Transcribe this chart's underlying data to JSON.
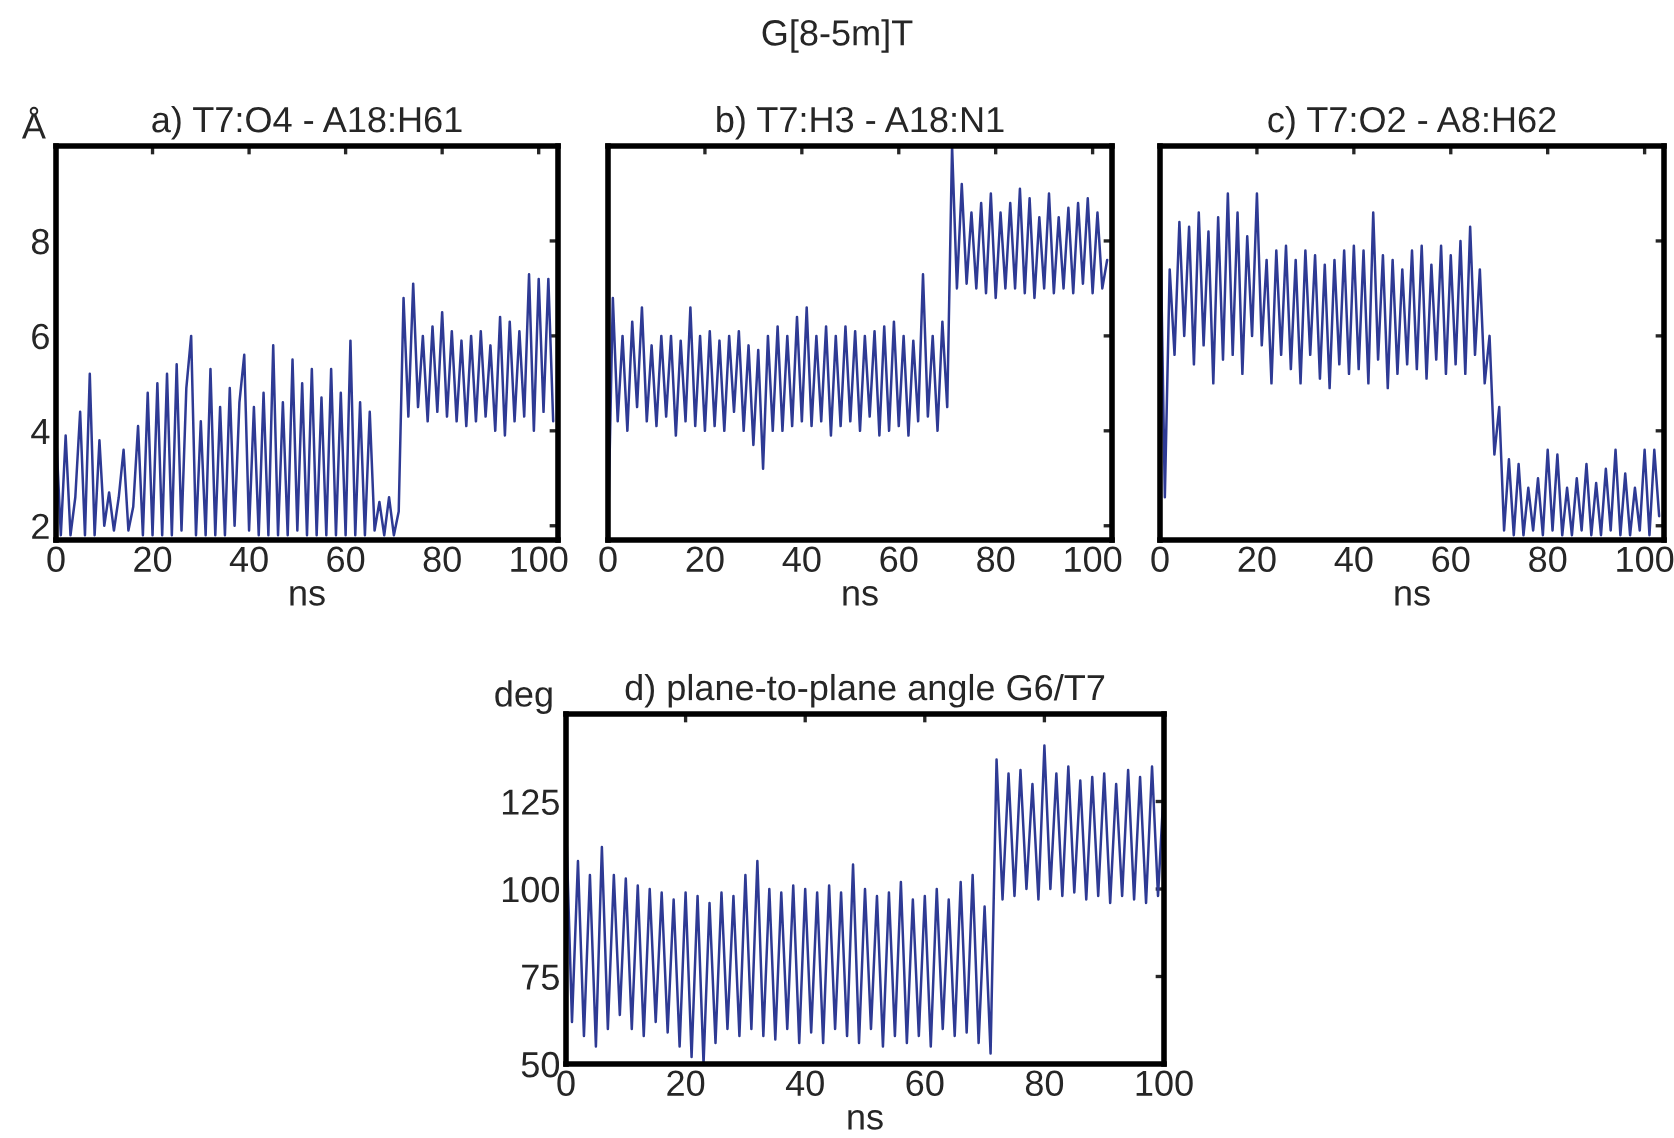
{
  "chart_data": [
    {
      "type": "line",
      "title": "a) T7:O4 - A18:H61",
      "xlabel": "ns",
      "ylabel": "Å",
      "annotations": [
        "G[8-5m]T"
      ],
      "xlim": [
        0,
        104
      ],
      "ylim": [
        1.7,
        10
      ],
      "xticks": [
        0,
        20,
        40,
        60,
        80,
        100
      ],
      "yticks": [
        2,
        4,
        6,
        8
      ],
      "grid": false,
      "legend": false,
      "series": [
        {
          "color": "#2e3a94",
          "x": [
            0,
            1,
            2,
            3,
            4,
            5,
            6,
            7,
            8,
            9,
            10,
            11,
            12,
            13,
            14,
            15,
            16,
            17,
            18,
            19,
            20,
            21,
            22,
            23,
            24,
            25,
            26,
            27,
            28,
            29,
            30,
            31,
            32,
            33,
            34,
            35,
            36,
            37,
            38,
            39,
            40,
            41,
            42,
            43,
            44,
            45,
            46,
            47,
            48,
            49,
            50,
            51,
            52,
            53,
            54,
            55,
            56,
            57,
            58,
            59,
            60,
            61,
            62,
            63,
            64,
            65,
            66,
            67,
            68,
            69,
            70,
            71,
            72,
            73,
            74,
            75,
            76,
            77,
            78,
            79,
            80,
            81,
            82,
            83,
            84,
            85,
            86,
            87,
            88,
            89,
            90,
            91,
            92,
            93,
            94,
            95,
            96,
            97,
            98,
            99,
            100,
            101,
            102,
            103
          ],
          "values": [
            4.0,
            1.8,
            3.9,
            1.8,
            2.6,
            4.4,
            1.8,
            5.2,
            1.8,
            3.8,
            2.0,
            2.7,
            1.9,
            2.6,
            3.6,
            1.9,
            2.4,
            4.1,
            1.8,
            4.8,
            1.8,
            5.0,
            1.8,
            5.2,
            1.8,
            5.4,
            1.9,
            4.9,
            6.0,
            1.8,
            4.2,
            1.8,
            5.3,
            1.8,
            4.5,
            1.8,
            4.9,
            2.0,
            4.6,
            5.6,
            1.9,
            4.5,
            1.8,
            4.8,
            1.8,
            5.8,
            1.8,
            4.6,
            1.8,
            5.5,
            1.9,
            5.0,
            1.8,
            5.3,
            1.8,
            4.7,
            1.8,
            5.3,
            1.8,
            4.8,
            1.8,
            5.9,
            1.8,
            4.6,
            1.8,
            4.4,
            1.9,
            2.5,
            1.8,
            2.6,
            1.8,
            2.3,
            6.8,
            4.3,
            7.1,
            4.5,
            6.0,
            4.2,
            6.2,
            4.4,
            6.5,
            4.3,
            6.1,
            4.2,
            5.9,
            4.1,
            6.0,
            4.2,
            6.1,
            4.3,
            5.8,
            4.0,
            6.4,
            3.9,
            6.3,
            4.2,
            6.1,
            4.3,
            7.3,
            4.0,
            7.2,
            4.4,
            7.2,
            4.2
          ]
        }
      ]
    },
    {
      "type": "line",
      "title": "b) T7:H3 - A18:N1",
      "xlabel": "ns",
      "xlim": [
        0,
        104
      ],
      "ylim": [
        1.7,
        10
      ],
      "xticks": [
        0,
        20,
        40,
        60,
        80,
        100
      ],
      "yticks": [
        2,
        4,
        6,
        8
      ],
      "tick_labels": "x",
      "grid": false,
      "legend": false,
      "series": [
        {
          "color": "#2e3a94",
          "x": [
            0,
            1,
            2,
            3,
            4,
            5,
            6,
            7,
            8,
            9,
            10,
            11,
            12,
            13,
            14,
            15,
            16,
            17,
            18,
            19,
            20,
            21,
            22,
            23,
            24,
            25,
            26,
            27,
            28,
            29,
            30,
            31,
            32,
            33,
            34,
            35,
            36,
            37,
            38,
            39,
            40,
            41,
            42,
            43,
            44,
            45,
            46,
            47,
            48,
            49,
            50,
            51,
            52,
            53,
            54,
            55,
            56,
            57,
            58,
            59,
            60,
            61,
            62,
            63,
            64,
            65,
            66,
            67,
            68,
            69,
            70,
            71,
            72,
            73,
            74,
            75,
            76,
            77,
            78,
            79,
            80,
            81,
            82,
            83,
            84,
            85,
            86,
            87,
            88,
            89,
            90,
            91,
            92,
            93,
            94,
            95,
            96,
            97,
            98,
            99,
            100,
            101,
            102,
            103
          ],
          "values": [
            1.8,
            6.8,
            4.2,
            6.0,
            4.0,
            6.3,
            4.5,
            6.6,
            4.2,
            5.8,
            4.1,
            6.0,
            4.3,
            6.0,
            3.9,
            5.9,
            4.2,
            6.6,
            4.1,
            6.0,
            4.0,
            6.1,
            4.1,
            5.9,
            4.0,
            6.0,
            4.4,
            6.1,
            4.0,
            5.8,
            3.7,
            5.7,
            3.2,
            6.0,
            4.0,
            6.2,
            4.0,
            6.0,
            4.1,
            6.4,
            4.2,
            6.6,
            4.1,
            6.0,
            4.2,
            6.2,
            3.9,
            6.0,
            4.1,
            6.2,
            4.2,
            6.1,
            4.0,
            6.0,
            4.3,
            6.1,
            3.9,
            6.2,
            4.0,
            6.3,
            4.1,
            6.0,
            3.9,
            5.9,
            4.2,
            7.3,
            4.3,
            6.0,
            4.0,
            6.3,
            4.5,
            10.0,
            7.0,
            9.2,
            7.1,
            8.6,
            7.0,
            8.8,
            6.9,
            9.0,
            6.8,
            8.6,
            7.0,
            8.8,
            7.0,
            9.1,
            6.9,
            8.9,
            6.8,
            8.5,
            7.0,
            9.0,
            6.9,
            8.5,
            7.0,
            8.7,
            6.9,
            8.8,
            7.1,
            8.9,
            6.9,
            8.6,
            7.0,
            7.6
          ]
        }
      ]
    },
    {
      "type": "line",
      "title": "c) T7:O2 - A8:H62",
      "xlabel": "ns",
      "xlim": [
        0,
        104
      ],
      "ylim": [
        1.7,
        10
      ],
      "xticks": [
        0,
        20,
        40,
        60,
        80,
        100
      ],
      "yticks": [
        2,
        4,
        6,
        8
      ],
      "tick_labels": "x",
      "grid": false,
      "legend": false,
      "series": [
        {
          "color": "#2e3a94",
          "x": [
            0,
            1,
            2,
            3,
            4,
            5,
            6,
            7,
            8,
            9,
            10,
            11,
            12,
            13,
            14,
            15,
            16,
            17,
            18,
            19,
            20,
            21,
            22,
            23,
            24,
            25,
            26,
            27,
            28,
            29,
            30,
            31,
            32,
            33,
            34,
            35,
            36,
            37,
            38,
            39,
            40,
            41,
            42,
            43,
            44,
            45,
            46,
            47,
            48,
            49,
            50,
            51,
            52,
            53,
            54,
            55,
            56,
            57,
            58,
            59,
            60,
            61,
            62,
            63,
            64,
            65,
            66,
            67,
            68,
            69,
            70,
            71,
            72,
            73,
            74,
            75,
            76,
            77,
            78,
            79,
            80,
            81,
            82,
            83,
            84,
            85,
            86,
            87,
            88,
            89,
            90,
            91,
            92,
            93,
            94,
            95,
            96,
            97,
            98,
            99,
            100,
            101,
            102,
            103
          ],
          "values": [
            8.8,
            2.6,
            7.4,
            5.6,
            8.4,
            6.0,
            8.3,
            5.4,
            8.6,
            5.8,
            8.2,
            5.0,
            8.5,
            5.5,
            9.0,
            5.6,
            8.6,
            5.2,
            8.1,
            6.0,
            9.0,
            5.8,
            7.6,
            5.0,
            7.8,
            5.6,
            7.9,
            5.3,
            7.6,
            5.0,
            7.8,
            5.6,
            7.7,
            5.1,
            7.5,
            4.9,
            7.6,
            5.4,
            7.8,
            5.2,
            7.9,
            5.3,
            7.8,
            5.0,
            8.6,
            5.5,
            7.7,
            4.9,
            7.6,
            5.2,
            7.4,
            5.4,
            7.8,
            5.3,
            7.9,
            5.1,
            7.5,
            5.5,
            7.9,
            5.2,
            7.7,
            5.4,
            8.0,
            5.2,
            8.3,
            5.6,
            7.4,
            5.0,
            6.0,
            3.5,
            4.5,
            1.9,
            3.4,
            1.8,
            3.3,
            1.8,
            2.8,
            1.9,
            3.0,
            1.8,
            3.6,
            1.9,
            3.5,
            1.8,
            2.8,
            1.8,
            3.0,
            1.9,
            3.3,
            1.8,
            2.9,
            1.8,
            3.2,
            1.9,
            3.6,
            1.8,
            3.1,
            1.8,
            2.8,
            1.9,
            3.6,
            1.8,
            3.6,
            2.2
          ]
        }
      ]
    },
    {
      "type": "line",
      "title": "d) plane-to-plane angle G6/T7",
      "xlabel": "ns",
      "ylabel": "deg",
      "xlim": [
        0,
        100
      ],
      "ylim": [
        50,
        150
      ],
      "xticks": [
        0,
        20,
        40,
        60,
        80,
        100
      ],
      "yticks": [
        50,
        75,
        100,
        125
      ],
      "grid": false,
      "legend": false,
      "series": [
        {
          "color": "#2e3a94",
          "x": [
            0,
            1,
            2,
            3,
            4,
            5,
            6,
            7,
            8,
            9,
            10,
            11,
            12,
            13,
            14,
            15,
            16,
            17,
            18,
            19,
            20,
            21,
            22,
            23,
            24,
            25,
            26,
            27,
            28,
            29,
            30,
            31,
            32,
            33,
            34,
            35,
            36,
            37,
            38,
            39,
            40,
            41,
            42,
            43,
            44,
            45,
            46,
            47,
            48,
            49,
            50,
            51,
            52,
            53,
            54,
            55,
            56,
            57,
            58,
            59,
            60,
            61,
            62,
            63,
            64,
            65,
            66,
            67,
            68,
            69,
            70,
            71,
            72,
            73,
            74,
            75,
            76,
            77,
            78,
            79,
            80,
            81,
            82,
            83,
            84,
            85,
            86,
            87,
            88,
            89,
            90,
            91,
            92,
            93,
            94,
            95,
            96,
            97,
            98,
            99,
            100
          ],
          "values": [
            120,
            62,
            108,
            58,
            104,
            55,
            112,
            60,
            104,
            64,
            103,
            60,
            101,
            58,
            100,
            62,
            99,
            59,
            97,
            55,
            99,
            52,
            98,
            50,
            96,
            56,
            99,
            60,
            98,
            58,
            104,
            60,
            108,
            58,
            100,
            57,
            99,
            60,
            101,
            56,
            100,
            59,
            99,
            56,
            101,
            60,
            99,
            58,
            107,
            56,
            100,
            60,
            98,
            55,
            99,
            58,
            102,
            56,
            97,
            58,
            98,
            55,
            100,
            60,
            97,
            58,
            102,
            59,
            104,
            56,
            95,
            53,
            137,
            97,
            133,
            98,
            134,
            100,
            130,
            97,
            141,
            100,
            133,
            98,
            135,
            99,
            131,
            97,
            132,
            98,
            133,
            96,
            130,
            98,
            134,
            97,
            132,
            96,
            135,
            98,
            130
          ]
        }
      ]
    }
  ]
}
